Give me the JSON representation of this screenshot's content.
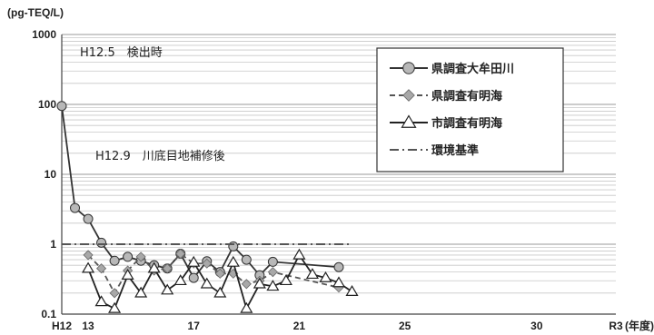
{
  "chart_data": {
    "type": "line",
    "y_unit": "(pg-TEQ/L)",
    "x_unit": "(年度)",
    "y_scale": "log",
    "ylim": [
      0.1,
      1000
    ],
    "y_ticks": [
      "1000",
      "100",
      "10",
      "1",
      "0.1"
    ],
    "x_ticks": [
      "H12",
      "13",
      "17",
      "21",
      "25",
      "30",
      "R3"
    ],
    "annotations": [
      "H12.5　検出時",
      "H12.9　川底目地補修後"
    ],
    "grid": true,
    "legend_position": "top-right",
    "series": [
      {
        "name": "県調査大牟田川",
        "color": "#333333",
        "marker": "circle",
        "line": "solid",
        "points": [
          [
            "H12",
            95
          ],
          [
            "H12.5",
            3.3
          ],
          [
            "H13",
            2.3
          ],
          [
            "H13.5",
            1.05
          ],
          [
            "H14",
            0.58
          ],
          [
            "H14.5",
            0.66
          ],
          [
            "H15",
            0.58
          ],
          [
            "H15.5",
            0.5
          ],
          [
            "H16",
            0.45
          ],
          [
            "H16.5",
            0.73
          ],
          [
            "H17",
            0.33
          ],
          [
            "H17.5",
            0.57
          ],
          [
            "H18",
            0.4
          ],
          [
            "H18.5",
            0.93
          ],
          [
            "H19",
            0.6
          ],
          [
            "H19.5",
            0.36
          ],
          [
            "H20",
            0.56
          ],
          [
            "H22.5",
            0.47
          ]
        ]
      },
      {
        "name": "県調査有明海",
        "color": "#555555",
        "marker": "diamond",
        "line": "dashed",
        "points": [
          [
            "H13",
            0.7
          ],
          [
            "H13.5",
            0.45
          ],
          [
            "H14",
            0.2
          ],
          [
            "H14.5",
            0.42
          ],
          [
            "H15",
            0.66
          ],
          [
            "H15.5",
            0.42
          ],
          [
            "H16",
            0.45
          ],
          [
            "H16.5",
            0.73
          ],
          [
            "H17",
            0.53
          ],
          [
            "H17.5",
            0.53
          ],
          [
            "H18",
            0.38
          ],
          [
            "H18.5",
            0.38
          ],
          [
            "H19",
            0.27
          ],
          [
            "H19.5",
            0.3
          ],
          [
            "H20",
            0.4
          ],
          [
            "H22.5",
            0.24
          ]
        ]
      },
      {
        "name": "市調査有明海",
        "color": "#222222",
        "marker": "triangle",
        "line": "solid",
        "points": [
          [
            "H13",
            0.45
          ],
          [
            "H13.5",
            0.15
          ],
          [
            "H14",
            0.12
          ],
          [
            "H14.5",
            0.36
          ],
          [
            "H15",
            0.2
          ],
          [
            "H15.5",
            0.45
          ],
          [
            "H16",
            0.22
          ],
          [
            "H16.5",
            0.3
          ],
          [
            "H17",
            0.55
          ],
          [
            "H17.5",
            0.27
          ],
          [
            "H18",
            0.2
          ],
          [
            "H18.5",
            0.55
          ],
          [
            "H19",
            0.12
          ],
          [
            "H19.5",
            0.27
          ],
          [
            "H20",
            0.25
          ],
          [
            "H20.5",
            0.3
          ],
          [
            "H21",
            0.7
          ],
          [
            "H21.5",
            0.37
          ],
          [
            "H22",
            0.33
          ],
          [
            "H22.5",
            0.28
          ],
          [
            "H23",
            0.21
          ]
        ]
      },
      {
        "name": "環境基準",
        "color": "#555555",
        "marker": "none",
        "line": "dashdot",
        "points": [
          [
            "H12",
            1
          ],
          [
            "H23",
            1
          ]
        ]
      }
    ]
  }
}
